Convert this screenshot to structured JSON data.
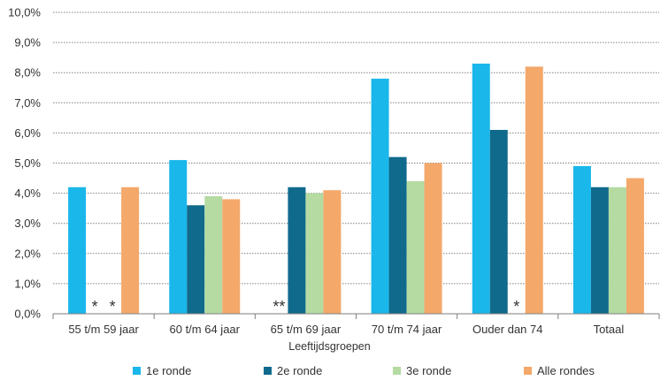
{
  "chart_data": {
    "type": "bar",
    "title": "",
    "xlabel": "Leeftijdsgroepen",
    "ylabel": "",
    "ylim": [
      0,
      10
    ],
    "yticks": [
      "0,0%",
      "1,0%",
      "2,0%",
      "3,0%",
      "4,0%",
      "5,0%",
      "6,0%",
      "7,0%",
      "8,0%",
      "9,0%",
      "10,0%"
    ],
    "grid": true,
    "legend_position": "bottom",
    "categories": [
      "55 t/m 59 jaar",
      "60 t/m 64 jaar",
      "65 t/m 69 jaar",
      "70 t/m 74 jaar",
      "Ouder dan 74",
      "Totaal"
    ],
    "series": [
      {
        "name": "1e ronde",
        "color": "#1ab7ea",
        "values": [
          4.2,
          5.1,
          null,
          7.8,
          8.3,
          4.9
        ]
      },
      {
        "name": "2e ronde",
        "color": "#0f6a8c",
        "values": [
          null,
          3.6,
          4.2,
          5.2,
          6.1,
          4.2
        ]
      },
      {
        "name": "3e ronde",
        "color": "#b5dba3",
        "values": [
          null,
          3.9,
          4.0,
          4.4,
          null,
          4.2
        ]
      },
      {
        "name": "Alle rondes",
        "color": "#f4a86a",
        "values": [
          4.2,
          3.8,
          4.1,
          5.0,
          8.2,
          4.5
        ]
      }
    ],
    "annotations": [
      {
        "text": "*",
        "category_index": 0,
        "series_index": 1
      },
      {
        "text": "*",
        "category_index": 0,
        "series_index": 2
      },
      {
        "text": "**",
        "category_index": 2,
        "series_index": 0
      },
      {
        "text": "*",
        "category_index": 4,
        "series_index": 2
      }
    ]
  }
}
